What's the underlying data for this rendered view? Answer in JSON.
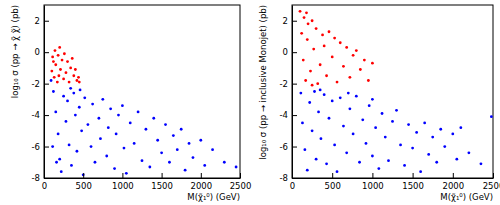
{
  "chart_data": [
    {
      "type": "scatter",
      "x_label": "M(χ̃₁⁰) (GeV)",
      "y_label": "log₁₀ σ (pp → χ̃ χ̃) (pb)",
      "xlim": [
        0,
        2500
      ],
      "xticks": [
        0,
        500,
        1000,
        1500,
        2000,
        2500
      ],
      "ylim": [
        -8,
        3
      ],
      "yticks": [
        -8,
        -6,
        -4,
        -2,
        0,
        2
      ],
      "marker": "circle",
      "series": [
        {
          "color": "#0000ff",
          "x": [
            120,
            150,
            180,
            200,
            220,
            250,
            280,
            300,
            320,
            350,
            380,
            400,
            420,
            450,
            480,
            500,
            520,
            560,
            600,
            620,
            650,
            700,
            720,
            750,
            800,
            820,
            850,
            900,
            920,
            950,
            1000,
            1020,
            1050,
            1100,
            1150,
            1200,
            1250,
            1300,
            1350,
            1400,
            1450,
            1500,
            1550,
            1600,
            1650,
            1700,
            1750,
            1800,
            1850,
            1900,
            2000,
            2050,
            2150,
            2300,
            2450,
            90,
            110,
            160,
            340,
            460
          ],
          "y": [
            -2.5,
            -3.8,
            -5.2,
            -6.8,
            -7.6,
            -2.8,
            -4.4,
            -3.1,
            -5.9,
            -7.2,
            -2.6,
            -4.0,
            -6.3,
            -3.5,
            -5.0,
            -7.8,
            -2.9,
            -4.6,
            -6.0,
            -3.3,
            -7.0,
            -4.2,
            -5.5,
            -3.0,
            -6.6,
            -4.8,
            -3.6,
            -7.4,
            -5.2,
            -4.0,
            -3.4,
            -6.1,
            -7.7,
            -4.5,
            -5.8,
            -3.8,
            -6.9,
            -4.9,
            -7.3,
            -4.2,
            -5.6,
            -6.4,
            -4.6,
            -7.0,
            -5.3,
            -6.2,
            -4.9,
            -7.5,
            -5.8,
            -6.7,
            -5.6,
            -7.2,
            -6.2,
            -7.0,
            -7.3,
            -1.8,
            -6.0,
            -7.0,
            -2.3,
            -2.4
          ]
        },
        {
          "color": "#ff0000",
          "x": [
            100,
            110,
            130,
            140,
            150,
            170,
            180,
            200,
            210,
            230,
            250,
            260,
            280,
            300,
            320,
            340,
            360,
            380,
            400,
            420,
            440,
            450,
            190,
            120
          ],
          "y": [
            -1.2,
            -0.3,
            -1.6,
            0.1,
            -0.8,
            -1.9,
            -0.2,
            0.3,
            -1.1,
            -0.5,
            -1.7,
            -0.1,
            -1.3,
            -0.6,
            -1.9,
            -1.0,
            -0.4,
            -1.5,
            -1.1,
            -1.8,
            -1.6,
            -1.9,
            -1.5,
            -0.6
          ]
        }
      ]
    },
    {
      "type": "scatter",
      "x_label": "M(χ̃₁⁰) (GeV)",
      "y_label": "log₁₀ σ (pp → inclusive Monojet) (pb)",
      "xlim": [
        0,
        2500
      ],
      "xticks": [
        0,
        500,
        1000,
        1500,
        2000,
        2500
      ],
      "ylim": [
        -8,
        3
      ],
      "yticks": [
        -8,
        -6,
        -4,
        -2,
        0,
        2
      ],
      "marker": "circle",
      "series": [
        {
          "color": "#0000ff",
          "x": [
            110,
            130,
            160,
            190,
            220,
            250,
            280,
            300,
            330,
            360,
            400,
            430,
            460,
            500,
            530,
            560,
            600,
            640,
            680,
            720,
            760,
            800,
            840,
            880,
            920,
            960,
            1000,
            1040,
            1080,
            1120,
            1160,
            1200,
            1250,
            1300,
            1350,
            1400,
            1450,
            1500,
            1550,
            1600,
            1650,
            1700,
            1750,
            1800,
            1850,
            1900,
            2000,
            2050,
            2100,
            2200,
            2350,
            2480,
            350,
            700,
            1000
          ],
          "y": [
            -2.6,
            -4.5,
            -6.2,
            -7.5,
            -3.2,
            -5.0,
            -2.5,
            -6.8,
            -3.8,
            -5.5,
            -2.7,
            -7.1,
            -4.2,
            -3.1,
            -5.9,
            -7.6,
            -2.9,
            -4.7,
            -6.4,
            -3.6,
            -5.2,
            -2.8,
            -7.0,
            -4.3,
            -5.8,
            -3.4,
            -6.6,
            -4.8,
            -7.4,
            -3.9,
            -5.4,
            -6.9,
            -4.4,
            -3.7,
            -5.9,
            -7.2,
            -4.6,
            -6.1,
            -5.1,
            -7.6,
            -4.5,
            -6.5,
            -5.4,
            -7.0,
            -4.9,
            -6.0,
            -5.2,
            -6.8,
            -4.8,
            -6.4,
            -7.1,
            -4.1,
            -2.4,
            -2.6,
            -3.0
          ]
        },
        {
          "color": "#ff0000",
          "x": [
            100,
            120,
            140,
            150,
            170,
            190,
            200,
            230,
            250,
            270,
            300,
            320,
            350,
            380,
            400,
            430,
            460,
            500,
            530,
            560,
            600,
            640,
            680,
            720,
            760,
            800,
            850,
            900,
            950,
            1000,
            250,
            180
          ],
          "y": [
            2.6,
            1.2,
            -0.5,
            2.2,
            -1.8,
            0.8,
            1.8,
            -1.2,
            2.0,
            0.2,
            1.5,
            -2.0,
            -0.8,
            1.1,
            0.4,
            -1.5,
            1.3,
            -0.3,
            0.9,
            -1.9,
            0.6,
            -0.9,
            0.3,
            -1.6,
            -0.2,
            0.1,
            -1.1,
            -0.5,
            -1.8,
            -0.7,
            -2.1,
            2.5
          ]
        }
      ]
    }
  ]
}
